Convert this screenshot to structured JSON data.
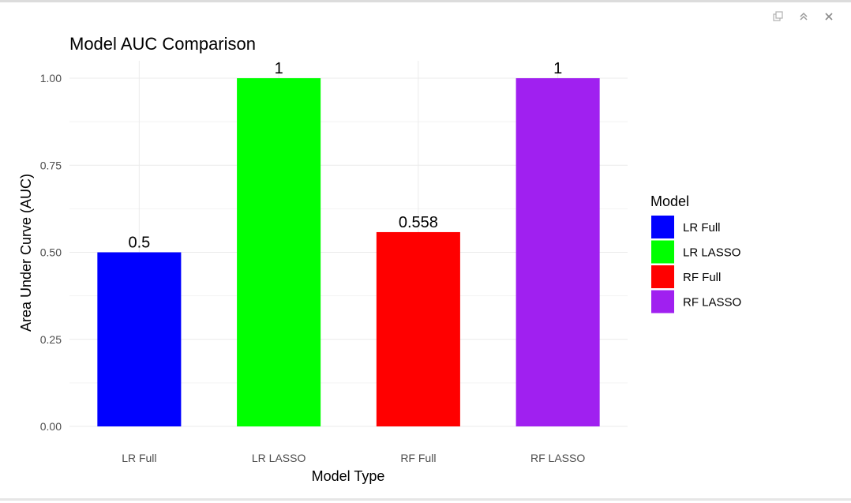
{
  "toolbar": {
    "icons": [
      "popout-icon",
      "collapse-icon",
      "close-icon"
    ]
  },
  "chart_data": {
    "type": "bar",
    "title": "Model AUC Comparison",
    "xlabel": "Model Type",
    "ylabel": "Area Under Curve (AUC)",
    "categories": [
      "LR Full",
      "LR LASSO",
      "RF Full",
      "RF LASSO"
    ],
    "values": [
      0.5,
      1,
      0.558,
      1
    ],
    "data_labels": [
      "0.5",
      "1",
      "0.558",
      "1"
    ],
    "colors": [
      "#0000ff",
      "#00ff00",
      "#ff0000",
      "#a020f0"
    ],
    "ylim": [
      0,
      1.05
    ],
    "yticks": [
      0,
      0.25,
      0.5,
      0.75,
      1
    ],
    "ytick_labels": [
      "0.00",
      "0.25",
      "0.50",
      "0.75",
      "1.00"
    ],
    "grid": true,
    "legend": {
      "title": "Model",
      "placement": "right",
      "entries": [
        "LR Full",
        "LR LASSO",
        "RF Full",
        "RF LASSO"
      ]
    }
  }
}
